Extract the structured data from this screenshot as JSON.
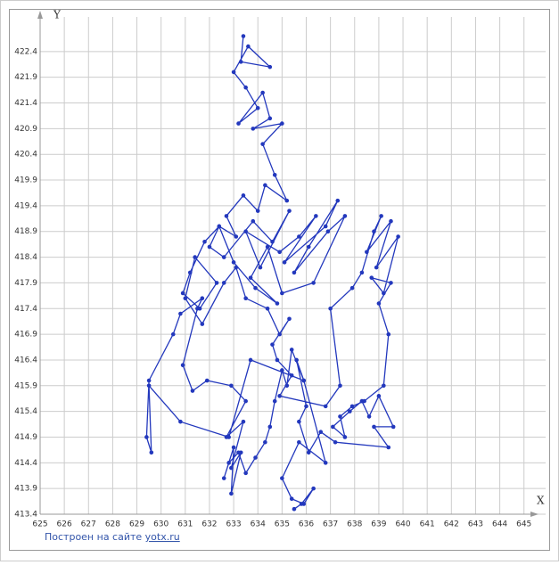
{
  "chart_data": {
    "type": "line",
    "x_label": "X",
    "y_label": "Y",
    "footer_text": "Построен на сайте",
    "footer_link": "yotx.ru",
    "color": "#2338bd",
    "xlim": [
      625,
      645.6
    ],
    "ylim": [
      413.4,
      422.9
    ],
    "xticks": [
      625,
      626,
      627,
      628,
      629,
      630,
      631,
      632,
      633,
      634,
      635,
      636,
      637,
      638,
      639,
      640,
      641,
      642,
      643,
      644,
      645
    ],
    "yticks": [
      413.4,
      413.9,
      414.4,
      414.9,
      415.4,
      415.9,
      416.4,
      416.9,
      417.4,
      417.9,
      418.4,
      418.9,
      419.4,
      419.9,
      420.4,
      420.9,
      421.4,
      421.9,
      422.4
    ],
    "grid": true,
    "x": [
      633.4,
      633.3,
      634.5,
      633.6,
      633.0,
      633.5,
      634.0,
      633.2,
      634.2,
      634.5,
      633.8,
      635.0,
      634.2,
      634.7,
      635.2,
      634.3,
      634.0,
      633.4,
      632.7,
      633.1,
      632.4,
      632.0,
      632.6,
      633.8,
      634.6,
      635.3,
      634.1,
      633.5,
      634.9,
      635.7,
      636.4,
      635.1,
      636.8,
      637.3,
      636.1,
      635.5,
      636.9,
      637.6,
      636.3,
      635.0,
      634.4,
      633.7,
      634.8,
      633.9,
      633.0,
      632.4,
      631.8,
      631.2,
      630.9,
      631.6,
      632.3,
      631.4,
      631.0,
      631.7,
      632.6,
      633.1,
      633.5,
      634.4,
      634.9,
      635.3,
      634.6,
      634.8,
      635.4,
      634.9,
      636.8,
      637.4,
      637.0,
      637.9,
      638.3,
      638.8,
      639.1,
      638.5,
      639.5,
      638.9,
      639.8,
      639.2,
      638.7,
      639.5,
      639.0,
      639.4,
      639.2,
      638.4,
      637.9,
      637.4,
      637.6,
      637.1,
      637.8,
      638.3,
      638.6,
      639.0,
      639.6,
      638.8,
      639.4,
      637.2,
      636.6,
      636.1,
      635.7,
      636.0,
      635.6,
      635.9,
      635.4,
      635.2,
      635.0,
      634.7,
      634.5,
      634.3,
      633.9,
      633.5,
      633.2,
      632.8,
      632.6,
      633.0,
      632.9,
      633.3,
      632.9,
      633.4,
      632.7,
      633.5,
      632.9,
      631.9,
      631.3,
      630.9,
      631.5,
      631.7,
      630.8,
      630.5,
      629.5,
      629.4,
      629.6,
      629.5,
      630.8,
      632.8,
      633.7,
      635.9,
      636.8,
      635.7,
      635.0,
      635.4,
      635.9,
      636.3,
      635.8,
      635.5
    ],
    "values": [
      422.7,
      422.2,
      422.1,
      422.5,
      422.0,
      421.7,
      421.3,
      421.0,
      421.6,
      421.1,
      420.9,
      421.0,
      420.6,
      420.0,
      419.5,
      419.8,
      419.3,
      419.6,
      419.2,
      418.8,
      419.0,
      418.6,
      418.4,
      419.1,
      418.7,
      419.3,
      418.2,
      418.9,
      418.5,
      418.8,
      419.2,
      418.3,
      419.0,
      419.5,
      418.6,
      418.1,
      418.9,
      419.2,
      417.9,
      417.7,
      418.6,
      418.0,
      417.5,
      417.8,
      418.3,
      419.0,
      418.7,
      418.1,
      417.7,
      417.4,
      417.9,
      418.4,
      417.6,
      417.1,
      417.9,
      418.2,
      417.6,
      417.4,
      416.9,
      417.2,
      416.7,
      416.4,
      416.1,
      415.7,
      415.5,
      415.9,
      417.4,
      417.8,
      418.1,
      418.9,
      419.2,
      418.5,
      419.1,
      418.2,
      418.8,
      417.7,
      418.0,
      417.9,
      417.5,
      416.9,
      415.9,
      415.6,
      415.5,
      415.3,
      414.9,
      415.1,
      415.4,
      415.6,
      415.3,
      415.7,
      415.1,
      415.1,
      414.7,
      414.8,
      415.0,
      414.6,
      415.2,
      415.5,
      416.4,
      416.0,
      416.6,
      415.9,
      416.2,
      415.6,
      415.1,
      414.8,
      414.5,
      414.2,
      414.6,
      414.4,
      414.1,
      414.7,
      413.8,
      414.6,
      414.3,
      415.2,
      414.9,
      415.6,
      415.9,
      416.0,
      415.8,
      416.3,
      417.4,
      417.6,
      417.3,
      416.9,
      416.0,
      414.9,
      414.6,
      415.9,
      415.2,
      414.9,
      416.4,
      416.0,
      414.4,
      414.8,
      414.1,
      413.7,
      413.6,
      413.9,
      413.6,
      413.5
    ]
  }
}
